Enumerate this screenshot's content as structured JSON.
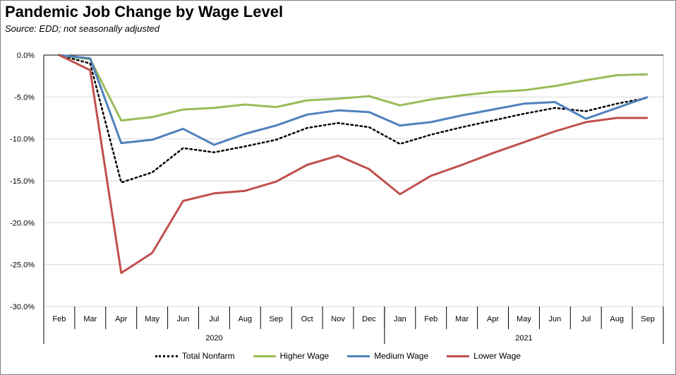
{
  "title": "Pandemic Job Change by Wage Level",
  "subtitle": "Source:  EDD; not seasonally adjusted",
  "chart_data": {
    "type": "line",
    "title": "Pandemic Job Change by Wage Level",
    "categories": [
      "Feb",
      "Mar",
      "Apr",
      "May",
      "Jun",
      "Jul",
      "Aug",
      "Sep",
      "Oct",
      "Nov",
      "Dec",
      "Jan",
      "Feb",
      "Mar",
      "Apr",
      "May",
      "Jun",
      "Jul",
      "Aug",
      "Sep"
    ],
    "years": [
      {
        "label": "2020",
        "from": 0,
        "to": 10
      },
      {
        "label": "2021",
        "from": 11,
        "to": 19
      }
    ],
    "ylim": [
      -30,
      0
    ],
    "yticks": [
      0,
      -5,
      -10,
      -15,
      -20,
      -25,
      -30
    ],
    "ytick_labels": [
      "0.0%",
      "-5.0%",
      "-10.0%",
      "-15.0%",
      "-20.0%",
      "-25.0%",
      "-30.0%"
    ],
    "grid": true,
    "legend_position": "bottom",
    "series": [
      {
        "name": "Total Nonfarm",
        "color": "#000000",
        "style": "dotted",
        "values": [
          0.0,
          -1.0,
          -15.2,
          -14.0,
          -11.1,
          -11.6,
          -10.9,
          -10.1,
          -8.7,
          -8.1,
          -8.6,
          -10.6,
          -9.5,
          -8.6,
          -7.8,
          -7.0,
          -6.3,
          -6.7,
          -5.8,
          -5.1
        ]
      },
      {
        "name": "Higher Wage",
        "color": "#9bbb59",
        "style": "solid",
        "values": [
          0.0,
          -0.5,
          -7.8,
          -7.4,
          -6.5,
          -6.3,
          -5.9,
          -6.2,
          -5.4,
          -5.2,
          -4.9,
          -6.0,
          -5.3,
          -4.8,
          -4.4,
          -4.2,
          -3.7,
          -3.0,
          -2.4,
          -2.3
        ]
      },
      {
        "name": "Medium Wage",
        "color": "#4f81bd",
        "style": "solid",
        "values": [
          0.0,
          -0.4,
          -10.5,
          -10.1,
          -8.8,
          -10.7,
          -9.4,
          -8.4,
          -7.1,
          -6.6,
          -6.8,
          -8.4,
          -8.0,
          -7.2,
          -6.5,
          -5.8,
          -5.6,
          -7.6,
          -6.3,
          -5.0
        ]
      },
      {
        "name": "Lower Wage",
        "color": "#c0504d",
        "style": "solid",
        "values": [
          0.0,
          -1.8,
          -26.0,
          -23.6,
          -17.4,
          -16.5,
          -16.2,
          -15.1,
          -13.1,
          -12.0,
          -13.6,
          -16.6,
          -14.4,
          -13.1,
          -11.7,
          -10.4,
          -9.1,
          -8.0,
          -7.5,
          -7.5
        ]
      }
    ]
  }
}
